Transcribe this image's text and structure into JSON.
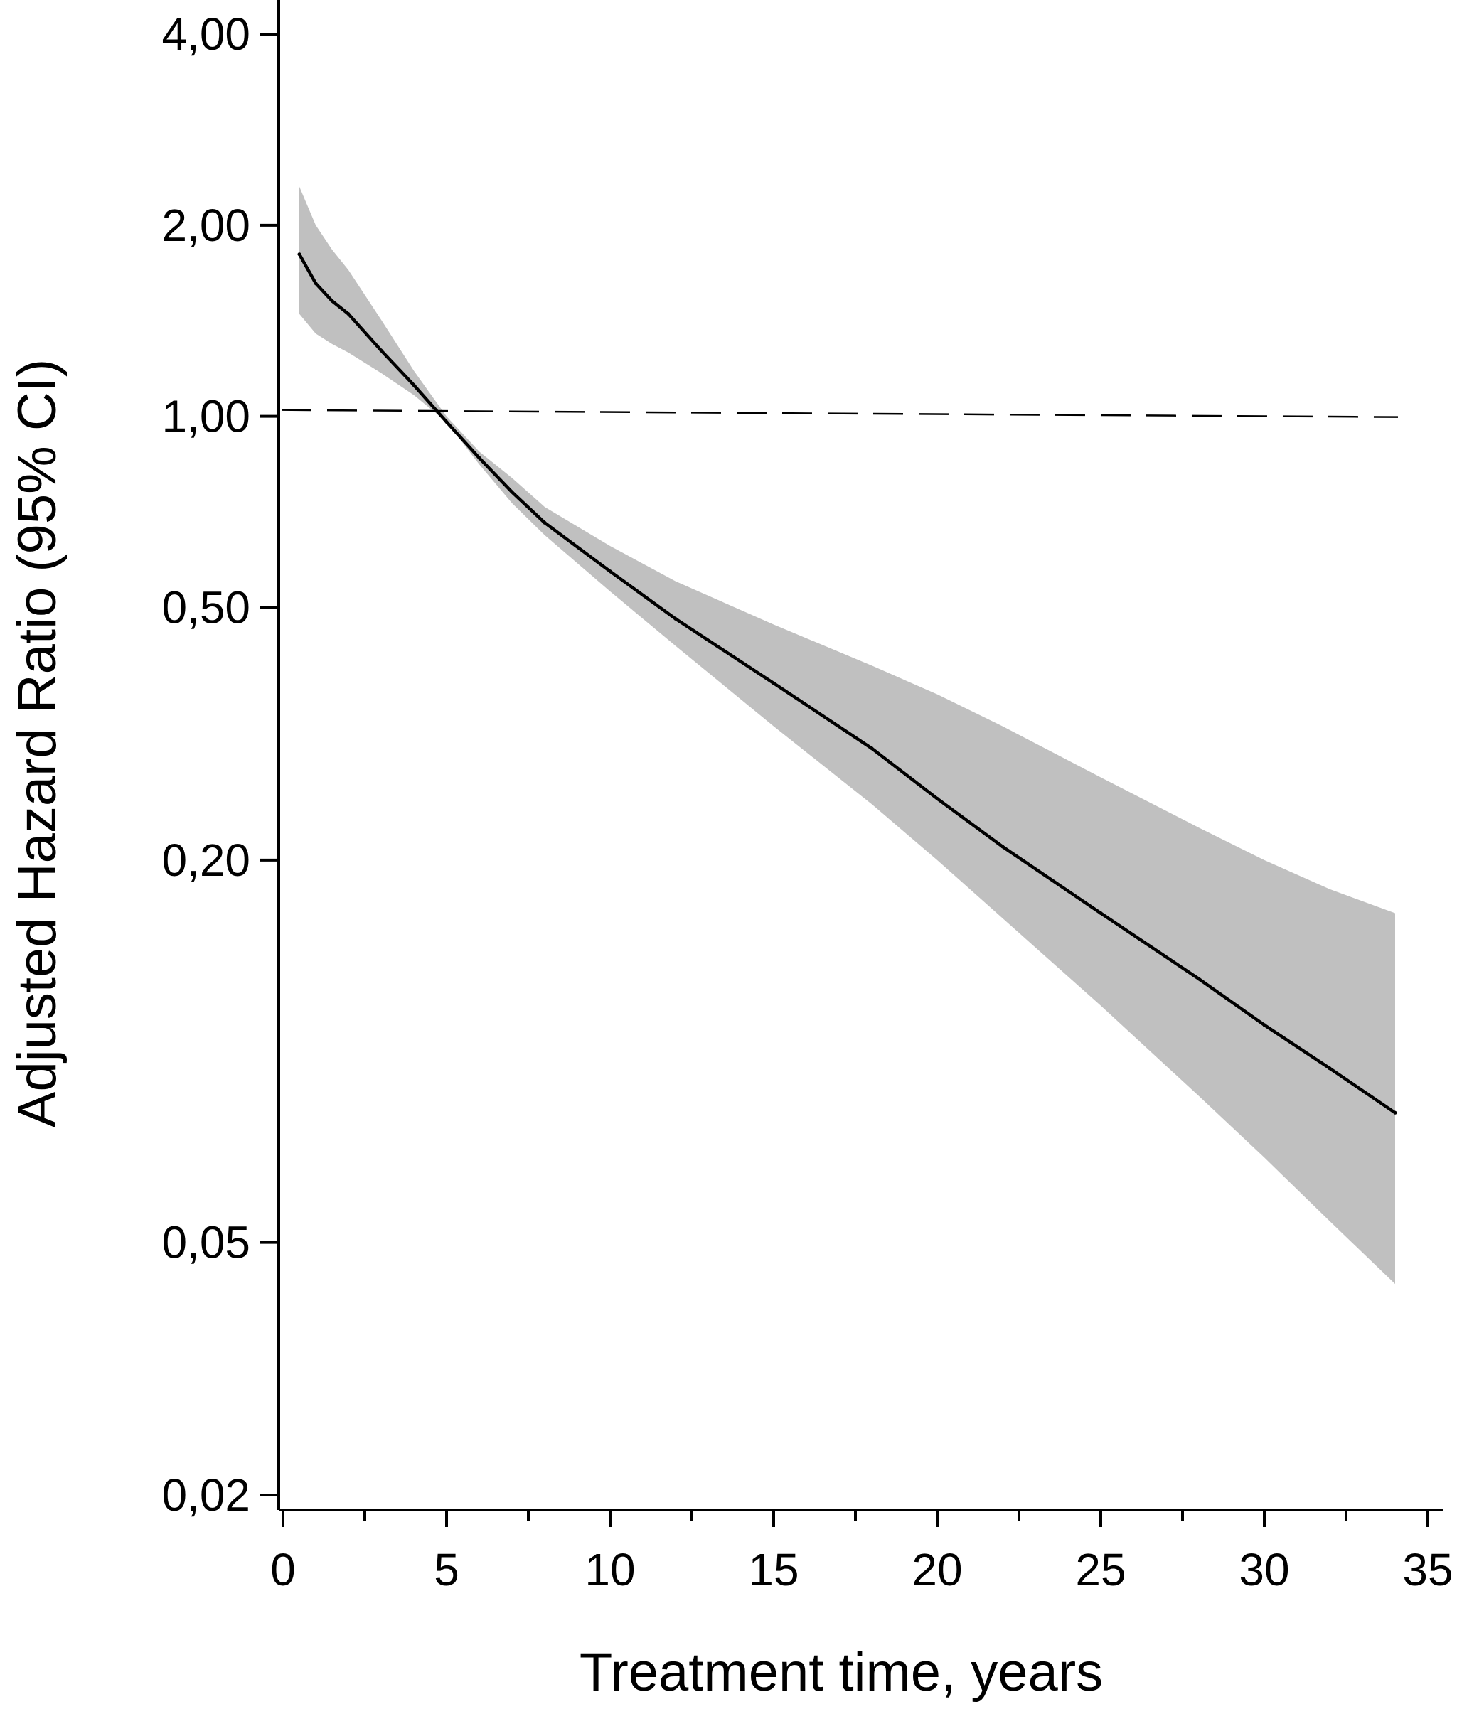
{
  "chart_data": {
    "type": "line",
    "title": "",
    "xlabel": "Treatment time, years",
    "ylabel": "Adjusted Hazard Ratio (95% CI)",
    "xlim": [
      0,
      35
    ],
    "ylim": [
      0.02,
      4.0
    ],
    "y_scale": "log",
    "grid": false,
    "x_ticks": [
      {
        "value": 0,
        "label": "0"
      },
      {
        "value": 5,
        "label": "5"
      },
      {
        "value": 10,
        "label": "10"
      },
      {
        "value": 15,
        "label": "15"
      },
      {
        "value": 20,
        "label": "20"
      },
      {
        "value": 25,
        "label": "25"
      },
      {
        "value": 30,
        "label": "30"
      },
      {
        "value": 35,
        "label": "35"
      }
    ],
    "x_minor_ticks": [
      2.5,
      7.5,
      12.5,
      17.5,
      22.5,
      27.5,
      32.5
    ],
    "y_ticks": [
      {
        "value": 0.02,
        "label": "0,02"
      },
      {
        "value": 0.05,
        "label": "0,05"
      },
      {
        "value": 0.2,
        "label": "0,20"
      },
      {
        "value": 0.5,
        "label": "0,50"
      },
      {
        "value": 1.0,
        "label": "1,00"
      },
      {
        "value": 2.0,
        "label": "2,00"
      },
      {
        "value": 4.0,
        "label": "4,00"
      }
    ],
    "reference_line": {
      "y": 1.0,
      "style": "dashed"
    },
    "series": [
      {
        "x": [
          0.5,
          1,
          1.5,
          2,
          3,
          4,
          5,
          6,
          7,
          8,
          10,
          12,
          15,
          18,
          20,
          22,
          25,
          28,
          30,
          32,
          34
        ],
        "y": [
          1.8,
          1.62,
          1.52,
          1.45,
          1.27,
          1.12,
          0.98,
          0.86,
          0.76,
          0.68,
          0.57,
          0.48,
          0.38,
          0.3,
          0.25,
          0.21,
          0.165,
          0.13,
          0.11,
          0.094,
          0.08
        ],
        "ci_lower": [
          1.45,
          1.35,
          1.3,
          1.26,
          1.17,
          1.08,
          0.98,
          0.84,
          0.73,
          0.65,
          0.53,
          0.435,
          0.325,
          0.245,
          0.2,
          0.162,
          0.118,
          0.085,
          0.068,
          0.054,
          0.043
        ],
        "ci_upper": [
          2.3,
          2.0,
          1.83,
          1.7,
          1.42,
          1.18,
          1.0,
          0.88,
          0.8,
          0.72,
          0.625,
          0.55,
          0.47,
          0.405,
          0.365,
          0.325,
          0.27,
          0.225,
          0.2,
          0.18,
          0.165
        ]
      }
    ]
  }
}
